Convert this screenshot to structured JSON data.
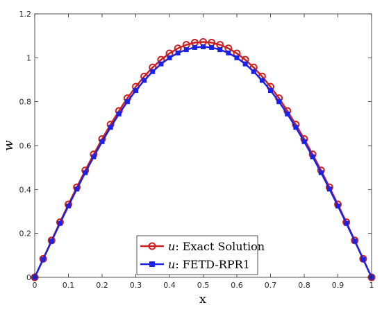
{
  "chart_data": {
    "type": "line",
    "title": "",
    "xlabel": "x",
    "ylabel": "w",
    "xlim": [
      0,
      1
    ],
    "ylim": [
      0,
      1.2
    ],
    "xticks": [
      0,
      0.1,
      0.2,
      0.3,
      0.4,
      0.5,
      0.6,
      0.7,
      0.8,
      0.9,
      1
    ],
    "xtick_labels": [
      "0",
      "0.1",
      "0.2",
      "0.3",
      "0.4",
      "0.5",
      "0.6",
      "0.7",
      "0.8",
      "0.9",
      "1"
    ],
    "yticks": [
      0,
      0.2,
      0.4,
      0.6,
      0.8,
      1,
      1.2
    ],
    "ytick_labels": [
      "0",
      "0.2",
      "0.4",
      "0.6",
      "0.8",
      "1",
      "1.2"
    ],
    "grid": false,
    "legend_position": "bottom-center",
    "x": [
      0,
      0.025,
      0.05,
      0.075,
      0.1,
      0.125,
      0.15,
      0.175,
      0.2,
      0.225,
      0.25,
      0.275,
      0.3,
      0.325,
      0.35,
      0.375,
      0.4,
      0.425,
      0.45,
      0.475,
      0.5,
      0.525,
      0.55,
      0.575,
      0.6,
      0.625,
      0.65,
      0.675,
      0.7,
      0.725,
      0.75,
      0.775,
      0.8,
      0.825,
      0.85,
      0.875,
      0.9,
      0.925,
      0.95,
      0.975,
      1
    ],
    "series": [
      {
        "name": "Exact Solution",
        "legend_label_var": "u",
        "legend_label_text": ": Exact Solution",
        "color": "#cc2020",
        "marker": "circle-open",
        "values": [
          0,
          0.084,
          0.168,
          0.251,
          0.332,
          0.41,
          0.487,
          0.56,
          0.63,
          0.696,
          0.758,
          0.816,
          0.868,
          0.915,
          0.956,
          0.991,
          1.02,
          1.043,
          1.059,
          1.069,
          1.072,
          1.069,
          1.059,
          1.043,
          1.02,
          0.991,
          0.956,
          0.915,
          0.868,
          0.816,
          0.758,
          0.696,
          0.63,
          0.56,
          0.487,
          0.41,
          0.332,
          0.251,
          0.168,
          0.084,
          0
        ]
      },
      {
        "name": "FETD-RPR1",
        "legend_label_var": "u",
        "legend_label_text": ": FETD-RPR1",
        "color": "#1a22e6",
        "marker": "square-filled",
        "values": [
          0,
          0.082,
          0.165,
          0.246,
          0.325,
          0.402,
          0.477,
          0.549,
          0.618,
          0.683,
          0.744,
          0.8,
          0.851,
          0.897,
          0.937,
          0.972,
          1.0,
          1.022,
          1.037,
          1.047,
          1.05,
          1.047,
          1.037,
          1.022,
          1.0,
          0.972,
          0.937,
          0.897,
          0.851,
          0.8,
          0.744,
          0.683,
          0.618,
          0.549,
          0.477,
          0.402,
          0.325,
          0.246,
          0.165,
          0.082,
          0
        ]
      }
    ]
  }
}
